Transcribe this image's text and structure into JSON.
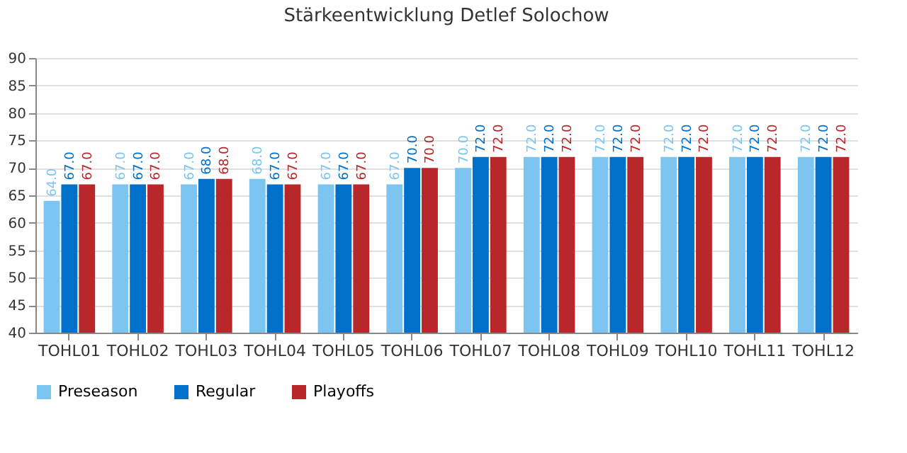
{
  "chart_data": {
    "type": "bar",
    "title": "Stärkeentwicklung Detlef Solochow",
    "categories": [
      "TOHL01",
      "TOHL02",
      "TOHL03",
      "TOHL04",
      "TOHL05",
      "TOHL06",
      "TOHL07",
      "TOHL08",
      "TOHL09",
      "TOHL10",
      "TOHL11",
      "TOHL12"
    ],
    "series": [
      {
        "name": "Preseason",
        "color": "#7cc5f0",
        "values": [
          64,
          67,
          67,
          68,
          67,
          67,
          70,
          72,
          72,
          72,
          72,
          72
        ],
        "value_labels": [
          "64.0",
          "67.0",
          "67.0",
          "68.0",
          "67.0",
          "67.0",
          "70.0",
          "72.0",
          "72.0",
          "72.0",
          "72.0",
          "72.0"
        ]
      },
      {
        "name": "Regular",
        "color": "#0070c8",
        "values": [
          67,
          67,
          68,
          67,
          67,
          70,
          72,
          72,
          72,
          72,
          72,
          72
        ],
        "value_labels": [
          "67.0",
          "67.0",
          "68.0",
          "67.0",
          "67.0",
          "70.0",
          "72.0",
          "72.0",
          "72.0",
          "72.0",
          "72.0",
          "72.0"
        ]
      },
      {
        "name": "Playoffs",
        "color": "#b8282a",
        "values": [
          67,
          67,
          68,
          67,
          67,
          70,
          72,
          72,
          72,
          72,
          72,
          72
        ],
        "value_labels": [
          "67.0",
          "67.0",
          "68.0",
          "67.0",
          "67.0",
          "70.0",
          "72.0",
          "72.0",
          "72.0",
          "72.0",
          "72.0",
          "72.0"
        ]
      }
    ],
    "ylim": [
      40,
      90
    ],
    "yticks": [
      40,
      45,
      50,
      55,
      60,
      65,
      70,
      75,
      80,
      85,
      90
    ],
    "grid": "y",
    "legend": "bottom"
  }
}
